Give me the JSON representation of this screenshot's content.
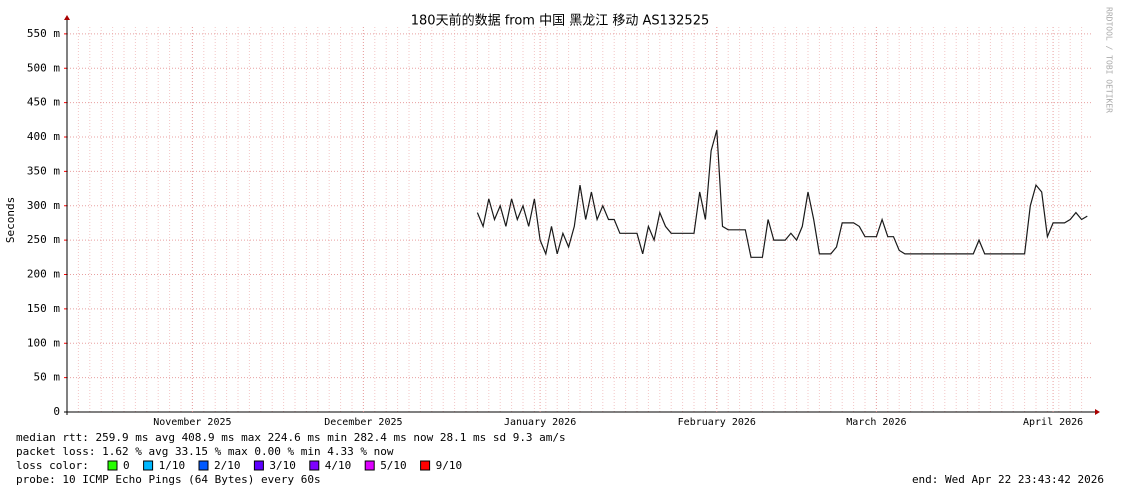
{
  "chart_data": {
    "type": "line",
    "title": "180天前的数据 from  中国 黑龙江 移动 AS132525",
    "y_label": "Seconds",
    "watermark": "RRDTOOL / TOBI OETIKER",
    "color": "#1a1a1a",
    "grid": true,
    "ylim": [
      0,
      0.56
    ],
    "yticks": [
      0,
      {
        "value": 0.05,
        "label": "50 m"
      },
      {
        "value": 0.1,
        "label": "100 m"
      },
      {
        "value": 0.15,
        "label": "150 m"
      },
      {
        "value": 0.2,
        "label": "200 m"
      },
      {
        "value": 0.25,
        "label": "250 m"
      },
      {
        "value": 0.3,
        "label": "300 m"
      },
      {
        "value": 0.35,
        "label": "350 m"
      },
      {
        "value": 0.4,
        "label": "400 m"
      },
      {
        "value": 0.45,
        "label": "450 m"
      },
      {
        "value": 0.5,
        "label": "500 m"
      },
      {
        "value": 0.55,
        "label": "550 m"
      }
    ],
    "categories": [
      null,
      null,
      null,
      null,
      null,
      null,
      null,
      null,
      null,
      null,
      null,
      null,
      null,
      null,
      null,
      null,
      null,
      null,
      null,
      null,
      null,
      null,
      "November 2025",
      null,
      null,
      null,
      null,
      null,
      null,
      null,
      null,
      null,
      null,
      null,
      null,
      null,
      null,
      null,
      null,
      null,
      null,
      null,
      null,
      null,
      null,
      null,
      null,
      null,
      null,
      null,
      null,
      null,
      "December 2025",
      null,
      null,
      null,
      null,
      null,
      null,
      null,
      null,
      null,
      null,
      null,
      null,
      null,
      null,
      null,
      null,
      null,
      null,
      null,
      null,
      null,
      null,
      null,
      null,
      null,
      null,
      null,
      null,
      null,
      null,
      "January 2026",
      null,
      null,
      null,
      null,
      null,
      null,
      null,
      null,
      null,
      null,
      null,
      null,
      null,
      null,
      null,
      null,
      null,
      null,
      null,
      null,
      null,
      null,
      null,
      null,
      null,
      null,
      null,
      null,
      null,
      null,
      "February 2026",
      null,
      null,
      null,
      null,
      null,
      null,
      null,
      null,
      null,
      null,
      null,
      null,
      null,
      null,
      null,
      null,
      null,
      null,
      null,
      null,
      null,
      null,
      null,
      null,
      null,
      null,
      null,
      "March 2026",
      null,
      null,
      null,
      null,
      null,
      null,
      null,
      null,
      null,
      null,
      null,
      null,
      null,
      null,
      null,
      null,
      null,
      null,
      null,
      null,
      null,
      null,
      null,
      null,
      null,
      null,
      null,
      null,
      null,
      null,
      "April 2026",
      null,
      null,
      null,
      null,
      null,
      null
    ],
    "values": [
      null,
      null,
      null,
      null,
      null,
      null,
      null,
      null,
      null,
      null,
      null,
      null,
      null,
      null,
      null,
      null,
      null,
      null,
      null,
      null,
      null,
      null,
      null,
      null,
      null,
      null,
      null,
      null,
      null,
      null,
      null,
      null,
      null,
      null,
      null,
      null,
      null,
      null,
      null,
      null,
      null,
      null,
      null,
      null,
      null,
      null,
      null,
      null,
      null,
      null,
      null,
      null,
      null,
      null,
      null,
      null,
      null,
      null,
      null,
      null,
      null,
      null,
      null,
      null,
      null,
      null,
      null,
      null,
      null,
      null,
      null,
      null,
      0.29,
      0.27,
      0.31,
      0.28,
      0.3,
      0.27,
      0.31,
      0.28,
      0.3,
      0.27,
      0.31,
      0.25,
      0.23,
      0.27,
      0.23,
      0.26,
      0.24,
      0.27,
      0.33,
      0.28,
      0.32,
      0.28,
      0.3,
      0.28,
      0.28,
      0.26,
      0.26,
      0.26,
      0.26,
      0.23,
      0.27,
      0.25,
      0.29,
      0.27,
      0.26,
      0.26,
      0.26,
      0.26,
      0.26,
      0.32,
      0.28,
      0.38,
      0.41,
      0.27,
      0.265,
      0.265,
      0.265,
      0.265,
      0.225,
      0.225,
      0.225,
      0.28,
      0.25,
      0.25,
      0.25,
      0.26,
      0.25,
      0.27,
      0.32,
      0.28,
      0.23,
      0.23,
      0.23,
      0.24,
      0.275,
      0.275,
      0.275,
      0.27,
      0.255,
      0.255,
      0.255,
      0.28,
      0.255,
      0.255,
      0.235,
      0.23,
      0.23,
      0.23,
      0.23,
      0.23,
      0.23,
      0.23,
      0.23,
      0.23,
      0.23,
      0.23,
      0.23,
      0.23,
      0.25,
      0.23,
      0.23,
      0.23,
      0.23,
      0.23,
      0.23,
      0.23,
      0.23,
      0.3,
      0.33,
      0.32,
      0.255,
      0.275,
      0.275,
      0.275,
      0.28,
      0.29,
      0.28,
      0.285
    ],
    "stats": {
      "median_rtt": "median rtt:  259.9 ms avg  408.9 ms max  224.6 ms min  282.4 ms now  28.1 ms sd  9.3   am/s",
      "packet_loss": "packet loss: 1.62 % avg  33.15 % max  0.00 % min  4.33 % now",
      "loss_color_label": "loss color:",
      "loss_colors": [
        {
          "label": "0",
          "color": "#26ff00"
        },
        {
          "label": "1/10",
          "color": "#00b8ff"
        },
        {
          "label": "2/10",
          "color": "#0059ff"
        },
        {
          "label": "3/10",
          "color": "#5e00ff"
        },
        {
          "label": "4/10",
          "color": "#7e00ff"
        },
        {
          "label": "5/10",
          "color": "#dd00ff"
        },
        {
          "label": "9/10",
          "color": "#ff0000"
        }
      ],
      "probe": "probe:       10 ICMP Echo Pings (64 Bytes) every 60s",
      "end": "end: Wed Apr 22 23:43:42 2026"
    }
  }
}
